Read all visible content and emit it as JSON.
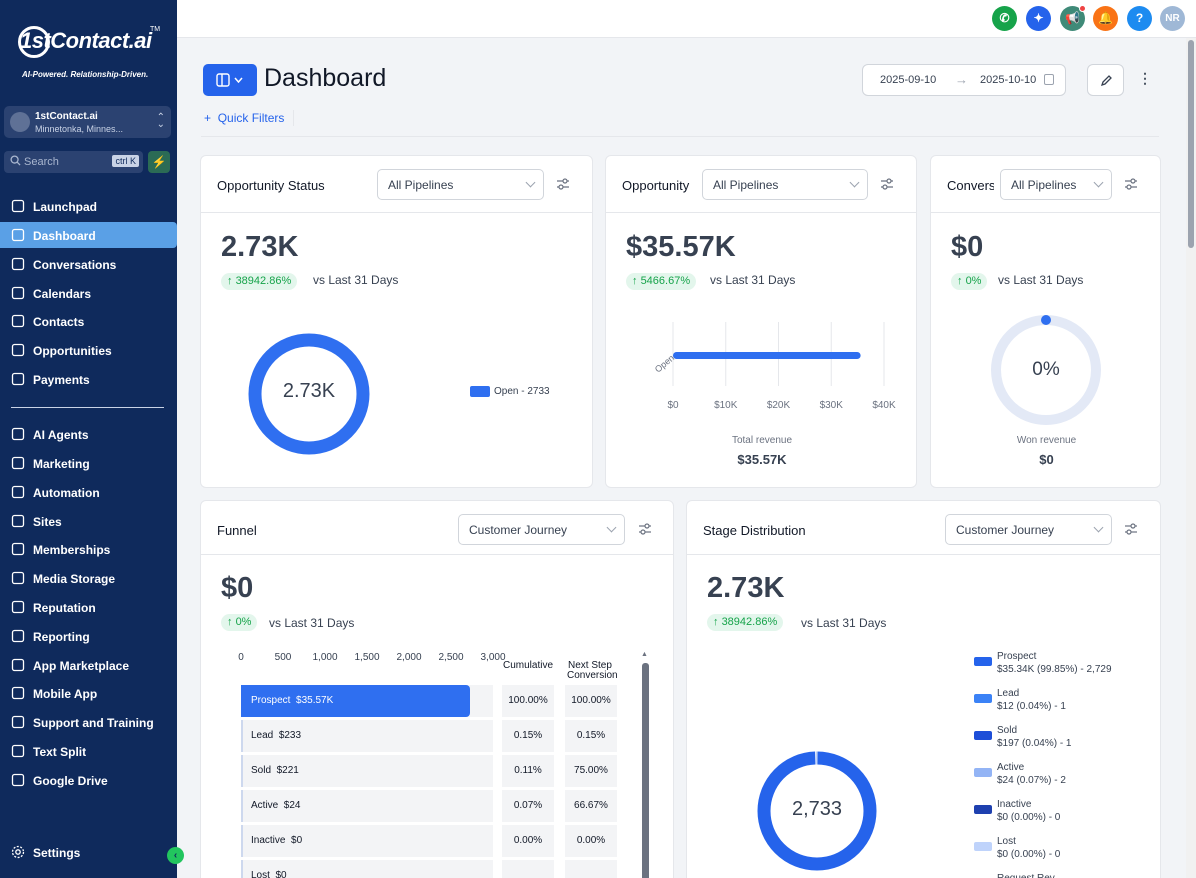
{
  "brand": {
    "logo_text": "1stContact.ai",
    "tagline": "AI-Powered. Relationship-Driven.",
    "tm": "TM"
  },
  "account": {
    "name": "1stContact.ai",
    "location": "Minnetonka, Minnes..."
  },
  "search": {
    "placeholder": "Search",
    "shortcut": "ctrl K"
  },
  "nav": {
    "items": [
      {
        "label": "Launchpad"
      },
      {
        "label": "Dashboard"
      },
      {
        "label": "Conversations"
      },
      {
        "label": "Calendars"
      },
      {
        "label": "Contacts"
      },
      {
        "label": "Opportunities"
      },
      {
        "label": "Payments"
      },
      {
        "label": "AI Agents"
      },
      {
        "label": "Marketing"
      },
      {
        "label": "Automation"
      },
      {
        "label": "Sites"
      },
      {
        "label": "Memberships"
      },
      {
        "label": "Media Storage"
      },
      {
        "label": "Reputation"
      },
      {
        "label": "Reporting"
      },
      {
        "label": "App Marketplace"
      },
      {
        "label": "Mobile App"
      },
      {
        "label": "Support and Training"
      },
      {
        "label": "Text Split"
      },
      {
        "label": "Google Drive"
      }
    ],
    "settings": "Settings"
  },
  "topbar": {
    "avatar_initials": "NR",
    "help": "?",
    "colors": {
      "phone": "#16a34a",
      "ai": "#2563eb",
      "announce": "#3f8a78",
      "notif": "#f97316",
      "help": "#1d8bf0",
      "avatar": "#9fb8d6"
    }
  },
  "header": {
    "title": "Dashboard",
    "date_start": "2025-09-10",
    "date_end": "2025-10-10",
    "quick_filters": "Quick Filters"
  },
  "cards": {
    "opportunity_status": {
      "title": "Opportunity Status",
      "select": "All Pipelines",
      "value": "2.73K",
      "change": "38942.86%",
      "vs": "vs Last 31 Days",
      "donut_center": "2.73K",
      "legend": "Open - 2733"
    },
    "opportunity": {
      "title": "Opportunity",
      "select": "All Pipelines",
      "value": "$35.57K",
      "change": "5466.67%",
      "vs": "vs Last 31 Days",
      "bar_label": "Open",
      "footer_label": "Total revenue",
      "footer_value": "$35.57K"
    },
    "conversion": {
      "title": "Conversion",
      "select": "All Pipelines",
      "value": "$0",
      "change": "0%",
      "vs": "vs Last 31 Days",
      "gauge_center": "0%",
      "footer_label": "Won revenue",
      "footer_value": "$0"
    },
    "funnel": {
      "title": "Funnel",
      "select": "Customer Journey",
      "value": "$0",
      "change": "0%",
      "vs": "vs Last 31 Days",
      "col_cumulative": "Cumulative",
      "col_next_1": "Next Step",
      "col_next_2": "Conversion",
      "rows": [
        {
          "stage": "Prospect",
          "amount": "$35.57K",
          "cumulative": "100.00%",
          "next": "100.00%"
        },
        {
          "stage": "Lead",
          "amount": "$233",
          "cumulative": "0.15%",
          "next": "0.15%"
        },
        {
          "stage": "Sold",
          "amount": "$221",
          "cumulative": "0.11%",
          "next": "75.00%"
        },
        {
          "stage": "Active",
          "amount": "$24",
          "cumulative": "0.07%",
          "next": "66.67%"
        },
        {
          "stage": "Inactive",
          "amount": "$0",
          "cumulative": "0.00%",
          "next": "0.00%"
        },
        {
          "stage": "Lost",
          "amount": "$0",
          "cumulative": "",
          "next": ""
        }
      ]
    },
    "stage_distribution": {
      "title": "Stage Distribution",
      "select": "Customer Journey",
      "value": "2.73K",
      "change": "38942.86%",
      "vs": "vs Last 31 Days",
      "donut_center": "2,733",
      "legend": [
        {
          "name": "Prospect",
          "detail": "$35.34K (99.85%) - 2,729",
          "color": "#2563eb"
        },
        {
          "name": "Lead",
          "detail": "$12 (0.04%) - 1",
          "color": "#3b82f6"
        },
        {
          "name": "Sold",
          "detail": "$197 (0.04%) - 1",
          "color": "#1d4ed8"
        },
        {
          "name": "Active",
          "detail": "$24 (0.07%) - 2",
          "color": "#93b4f5"
        },
        {
          "name": "Inactive",
          "detail": "$0 (0.00%) - 0",
          "color": "#1e40af"
        },
        {
          "name": "Lost",
          "detail": "$0 (0.00%) - 0",
          "color": "#bfd3fb"
        },
        {
          "name": "Request Rev...",
          "detail": "",
          "color": "#6b9bf2"
        }
      ]
    }
  },
  "chart_data": [
    {
      "type": "pie",
      "title": "Opportunity Status",
      "categories": [
        "Open"
      ],
      "values": [
        2733
      ],
      "center_label": "2.73K"
    },
    {
      "type": "bar",
      "title": "Opportunity",
      "orientation": "horizontal",
      "categories": [
        "Open"
      ],
      "values": [
        35570
      ],
      "xlim": [
        0,
        40000
      ],
      "x_ticks": [
        "$0",
        "$10K",
        "$20K",
        "$30K",
        "$40K"
      ],
      "xlabel": "Total revenue"
    },
    {
      "type": "pie",
      "title": "Conversion",
      "values": [
        0
      ],
      "center_label": "0%"
    },
    {
      "type": "bar",
      "title": "Funnel",
      "orientation": "horizontal",
      "categories": [
        "Prospect",
        "Lead",
        "Sold",
        "Active",
        "Inactive",
        "Lost"
      ],
      "values": [
        2729,
        1,
        1,
        2,
        0,
        0
      ],
      "xlim": [
        0,
        3000
      ],
      "x_ticks": [
        "0",
        "500",
        "1,000",
        "1,500",
        "2,000",
        "2,500",
        "3,000"
      ]
    },
    {
      "type": "pie",
      "title": "Stage Distribution",
      "categories": [
        "Prospect",
        "Lead",
        "Sold",
        "Active",
        "Inactive",
        "Lost"
      ],
      "values": [
        2729,
        1,
        1,
        2,
        0,
        0
      ],
      "center_label": "2,733"
    }
  ]
}
